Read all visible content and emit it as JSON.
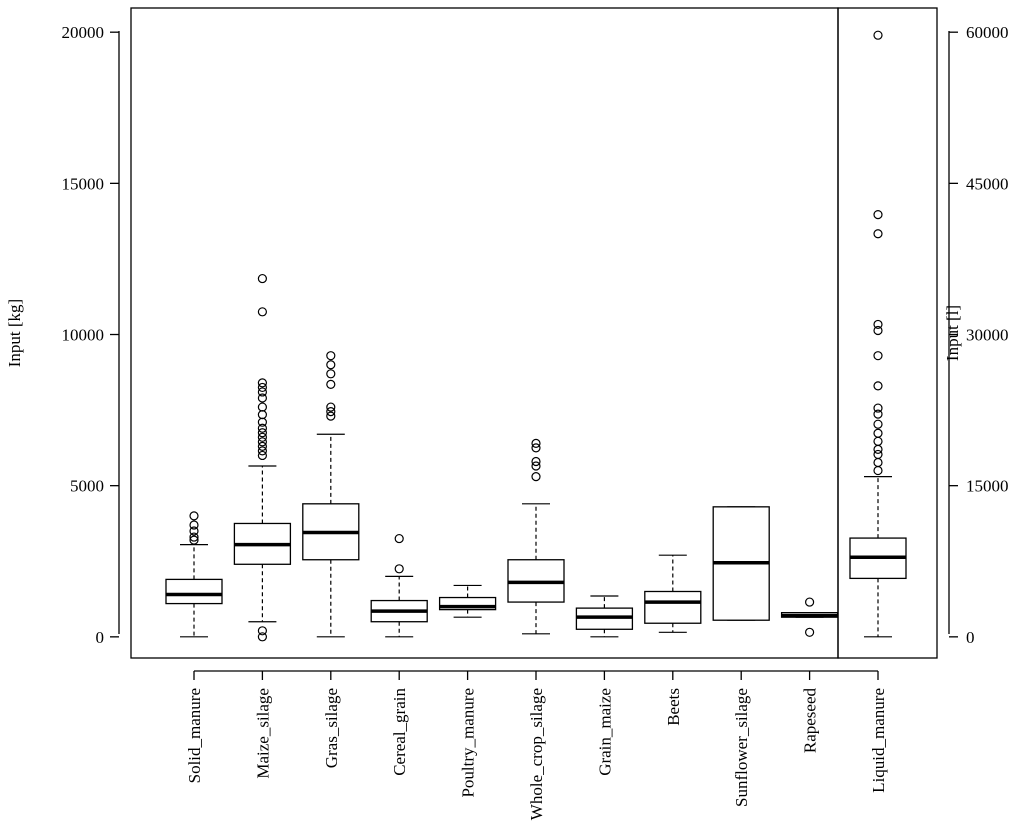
{
  "chart_data": {
    "type": "boxplot",
    "left_axis": {
      "label": "Input [kg]",
      "range": [
        -700,
        20800
      ],
      "ticks": [
        0,
        5000,
        10000,
        15000,
        20000
      ],
      "tick_labels": [
        "0",
        "5000",
        "10000",
        "15000",
        "20000"
      ]
    },
    "right_axis": {
      "label": "Input [l]",
      "range": [
        -2100,
        62400
      ],
      "ticks": [
        0,
        15000,
        30000,
        45000,
        60000
      ],
      "tick_labels": [
        "0",
        "15000",
        "30000",
        "45000",
        "60000"
      ]
    },
    "series": [
      {
        "name": "Solid_manure",
        "axis": "left",
        "min": 0,
        "q1": 1100,
        "median": 1400,
        "q3": 1900,
        "max": 3050,
        "outliers": [
          3200,
          3300,
          3500,
          3700,
          4000
        ]
      },
      {
        "name": "Maize_silage",
        "axis": "left",
        "min": 500,
        "q1": 2400,
        "median": 3050,
        "q3": 3750,
        "max": 5650,
        "outliers": [
          0,
          200,
          6000,
          6150,
          6300,
          6450,
          6600,
          6750,
          6900,
          7100,
          7350,
          7600,
          7900,
          8100,
          8250,
          8400,
          10750,
          11850
        ]
      },
      {
        "name": "Gras_silage",
        "axis": "left",
        "min": 0,
        "q1": 2550,
        "median": 3450,
        "q3": 4400,
        "max": 6700,
        "outliers": [
          7300,
          7450,
          7600,
          8350,
          8700,
          9000,
          9300
        ]
      },
      {
        "name": "Cereal_grain",
        "axis": "left",
        "min": 0,
        "q1": 500,
        "median": 850,
        "q3": 1200,
        "max": 2000,
        "outliers": [
          2250,
          3250
        ]
      },
      {
        "name": "Poultry_manure",
        "axis": "left",
        "min": 650,
        "q1": 900,
        "median": 1000,
        "q3": 1300,
        "max": 1700,
        "outliers": []
      },
      {
        "name": "Whole_crop_silage",
        "axis": "left",
        "min": 100,
        "q1": 1150,
        "median": 1800,
        "q3": 2550,
        "max": 4400,
        "outliers": [
          5300,
          5650,
          5800,
          6250,
          6400
        ]
      },
      {
        "name": "Grain_maize",
        "axis": "left",
        "min": 0,
        "q1": 250,
        "median": 650,
        "q3": 950,
        "max": 1350,
        "outliers": []
      },
      {
        "name": "Beets",
        "axis": "left",
        "min": 150,
        "q1": 450,
        "median": 1150,
        "q3": 1500,
        "max": 2700,
        "outliers": []
      },
      {
        "name": "Sunflower_silage",
        "axis": "left",
        "min": 550,
        "q1": 550,
        "median": 2450,
        "q3": 4300,
        "max": 4300,
        "outliers": []
      },
      {
        "name": "Rapeseed",
        "axis": "left",
        "min": 650,
        "q1": 650,
        "median": 700,
        "q3": 800,
        "max": 800,
        "outliers": [
          150,
          1150
        ]
      },
      {
        "name": "Liquid_manure",
        "axis": "right",
        "min": 0,
        "q1": 5800,
        "median": 7900,
        "q3": 9800,
        "max": 15900,
        "outliers": [
          16500,
          17300,
          18100,
          18600,
          19400,
          20200,
          21100,
          22100,
          22700,
          24900,
          27900,
          30400,
          31000,
          40000,
          41900,
          59700
        ]
      }
    ]
  }
}
